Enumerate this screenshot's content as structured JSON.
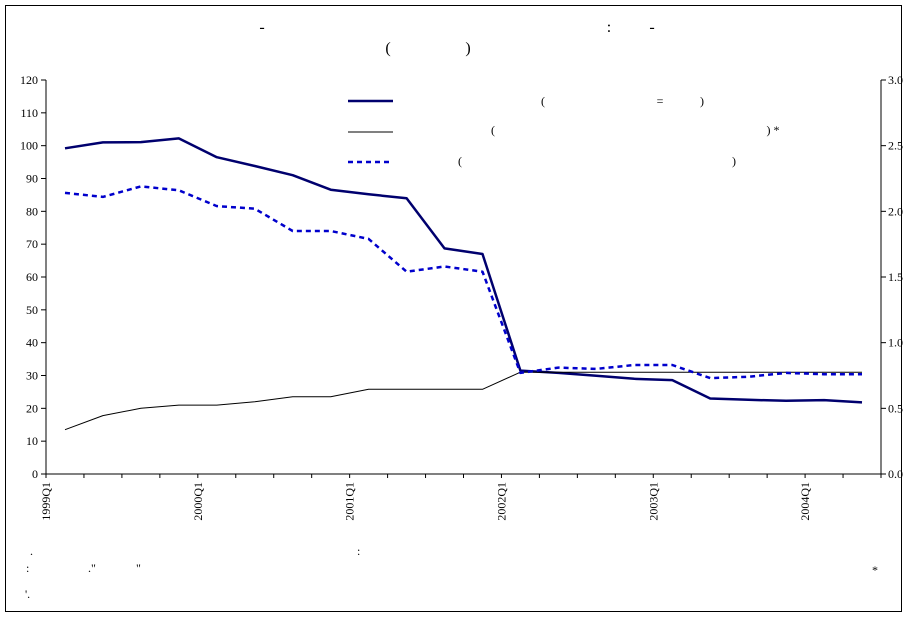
{
  "chart_data": {
    "type": "line",
    "title": {
      "line1_parts": [
        "-",
        ":",
        "-"
      ],
      "line2_parts": [
        "(",
        ")"
      ]
    },
    "x": [
      "1999Q1",
      "1999Q2",
      "1999Q3",
      "1999Q4",
      "2000Q1",
      "2000Q2",
      "2000Q3",
      "2000Q4",
      "2001Q1",
      "2001Q2",
      "2001Q3",
      "2001Q4",
      "2002Q1",
      "2002Q2",
      "2002Q3",
      "2002Q4",
      "2003Q1",
      "2003Q2",
      "2003Q3",
      "2003Q4",
      "2004Q1",
      "2004Q2"
    ],
    "x_tick_labels": [
      "1999Q1",
      "2000Q1",
      "2001Q1",
      "2002Q1",
      "2003Q1",
      "2004Q1"
    ],
    "y_left": {
      "min": 0,
      "max": 120,
      "step": 10,
      "ticks": [
        "0",
        "10",
        "20",
        "30",
        "40",
        "50",
        "60",
        "70",
        "80",
        "90",
        "100",
        "110",
        "120"
      ]
    },
    "y_right": {
      "min": 0,
      "max": 3,
      "ticks": [
        "0.0",
        "0.5",
        "1.0",
        "1.5",
        "2.0",
        "2.5",
        "3.0"
      ]
    },
    "grid": false,
    "legend_position": "top-center",
    "series": [
      {
        "style": "thick-solid",
        "color": "#00006e",
        "axis": "left",
        "legend_marks": [
          "(",
          "=",
          ")"
        ],
        "values": [
          99.2,
          101.0,
          101.1,
          102.2,
          96.5,
          93.8,
          91.0,
          86.6,
          85.2,
          84.0,
          68.7,
          67.0,
          31.5,
          30.8,
          29.9,
          29.0,
          28.6,
          23.0,
          22.6,
          22.3,
          22.5,
          21.8
        ]
      },
      {
        "style": "thin-solid",
        "color": "#000000",
        "axis": "left",
        "legend_marks": [
          "(",
          ") *"
        ],
        "values": [
          13.5,
          17.8,
          20.0,
          21.0,
          21.0,
          22.0,
          23.5,
          23.5,
          25.8,
          25.8,
          25.8,
          25.8,
          31.0,
          31.0,
          31.0,
          31.0,
          31.0,
          31.0,
          31.0,
          31.0,
          31.0,
          31.0
        ]
      },
      {
        "style": "dotted",
        "color": "#0000cc",
        "axis": "right",
        "legend_marks": [
          "(",
          ")"
        ],
        "values": [
          2.14,
          2.11,
          2.19,
          2.16,
          2.04,
          2.02,
          1.85,
          1.85,
          1.79,
          1.54,
          1.58,
          1.54,
          0.77,
          0.81,
          0.8,
          0.83,
          0.83,
          0.73,
          0.74,
          0.77,
          0.76,
          0.76
        ]
      }
    ],
    "notes": {
      "row1_marks": [
        ".",
        ":"
      ],
      "row2_marks": [
        ":",
        ".\"",
        "\"",
        "*"
      ],
      "row3_marks": [
        "'."
      ]
    }
  }
}
